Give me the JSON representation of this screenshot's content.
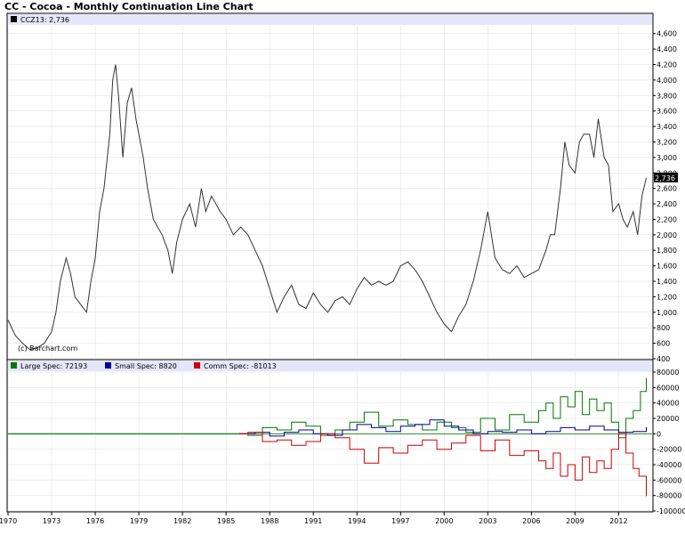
{
  "title": "CC - Cocoa - Monthly Continuation Line Chart",
  "colors": {
    "panel_border": "#000000",
    "header_band": "#e6e6fa",
    "price_line": "#333333",
    "grid": "#dcdcdc",
    "large_spec": "#007700",
    "small_spec": "#000099",
    "comm_spec": "#cc0000",
    "zero_line": "#2a8a2a",
    "last_bg": "#000000",
    "last_fg": "#ffffff"
  },
  "chart_data": [
    {
      "type": "line",
      "name": "price",
      "legend": "CCZ13: 2,736",
      "series_name": "CCZ13",
      "last_value_label": "2,736",
      "credit": "(c) Barchart.com",
      "ylim": [
        400,
        4700
      ],
      "yticks": [
        400,
        600,
        800,
        1000,
        1200,
        1400,
        1600,
        1800,
        2000,
        2200,
        2400,
        2600,
        2800,
        3000,
        3200,
        3400,
        3600,
        3800,
        4000,
        4200,
        4400,
        4600
      ],
      "ytick_labels": [
        "400",
        "600",
        "800",
        "1,000",
        "1,200",
        "1,400",
        "1,600",
        "1,800",
        "2,000",
        "2,200",
        "2,400",
        "2,600",
        "2,800",
        "3,000",
        "3,200",
        "3,400",
        "3,600",
        "3,800",
        "4,000",
        "4,200",
        "4,400",
        "4,600"
      ],
      "x": [
        1970.0,
        1970.5,
        1971.0,
        1971.5,
        1972.0,
        1972.5,
        1973.0,
        1973.3,
        1973.6,
        1974.0,
        1974.3,
        1974.6,
        1975.0,
        1975.4,
        1975.7,
        1976.0,
        1976.3,
        1976.6,
        1977.0,
        1977.2,
        1977.4,
        1977.6,
        1977.9,
        1978.2,
        1978.5,
        1978.8,
        1979.0,
        1979.3,
        1979.6,
        1980.0,
        1980.3,
        1980.6,
        1981.0,
        1981.3,
        1981.6,
        1982.0,
        1982.5,
        1982.9,
        1983.3,
        1983.6,
        1984.0,
        1984.3,
        1984.6,
        1985.0,
        1985.5,
        1986.0,
        1986.5,
        1987.0,
        1987.5,
        1988.0,
        1988.5,
        1989.0,
        1989.5,
        1990.0,
        1990.5,
        1991.0,
        1991.5,
        1992.0,
        1992.5,
        1993.0,
        1993.5,
        1994.0,
        1994.5,
        1995.0,
        1995.5,
        1996.0,
        1996.5,
        1997.0,
        1997.5,
        1998.0,
        1998.5,
        1999.0,
        1999.5,
        2000.0,
        2000.5,
        2001.0,
        2001.5,
        2002.0,
        2002.5,
        2003.0,
        2003.5,
        2004.0,
        2004.5,
        2005.0,
        2005.5,
        2006.0,
        2006.5,
        2007.0,
        2007.3,
        2007.6,
        2008.0,
        2008.3,
        2008.6,
        2009.0,
        2009.3,
        2009.6,
        2010.0,
        2010.3,
        2010.6,
        2011.0,
        2011.3,
        2011.6,
        2012.0,
        2012.3,
        2012.6,
        2013.0,
        2013.3,
        2013.6,
        2013.9
      ],
      "values": [
        900,
        700,
        600,
        520,
        540,
        600,
        750,
        1000,
        1400,
        1700,
        1500,
        1200,
        1100,
        1000,
        1400,
        1700,
        2300,
        2600,
        3300,
        4000,
        4200,
        3800,
        3000,
        3700,
        3900,
        3500,
        3300,
        3000,
        2600,
        2200,
        2100,
        2000,
        1800,
        1500,
        1900,
        2200,
        2400,
        2100,
        2600,
        2300,
        2500,
        2400,
        2300,
        2200,
        2000,
        2100,
        2000,
        1800,
        1600,
        1300,
        1000,
        1200,
        1350,
        1100,
        1050,
        1250,
        1100,
        1000,
        1150,
        1200,
        1100,
        1300,
        1450,
        1350,
        1400,
        1350,
        1400,
        1600,
        1650,
        1550,
        1400,
        1200,
        1000,
        850,
        750,
        950,
        1100,
        1400,
        1800,
        2300,
        1700,
        1550,
        1500,
        1600,
        1450,
        1500,
        1550,
        1800,
        2000,
        2000,
        2600,
        3200,
        2900,
        2800,
        3200,
        3300,
        3300,
        3000,
        3500,
        3000,
        2900,
        2300,
        2400,
        2200,
        2100,
        2300,
        2000,
        2500,
        2736
      ]
    },
    {
      "type": "line",
      "name": "cot",
      "ylim": [
        -100000,
        80000
      ],
      "yticks": [
        -100000,
        -80000,
        -60000,
        -40000,
        -20000,
        0,
        20000,
        40000,
        60000,
        80000
      ],
      "ytick_labels": [
        "-100000",
        "-80000",
        "-60000",
        "-40000",
        "-20000",
        "0",
        "20000",
        "40000",
        "60000",
        "80000"
      ],
      "series": [
        {
          "name": "Large Spec",
          "legend": "Large Spec: 72193",
          "color_key": "large_spec",
          "x": [
            1970.0,
            1985.9,
            1986.5,
            1987.5,
            1988.5,
            1989.5,
            1990.5,
            1991.5,
            1992.5,
            1993.5,
            1994.5,
            1995.5,
            1996.5,
            1997.5,
            1998.5,
            1999.5,
            2000.5,
            2001.5,
            2002.5,
            2003.5,
            2004.5,
            2005.5,
            2006.5,
            2007.0,
            2007.5,
            2008.0,
            2008.5,
            2009.0,
            2009.5,
            2010.0,
            2010.5,
            2011.0,
            2011.5,
            2012.0,
            2012.5,
            2013.0,
            2013.5,
            2013.9
          ],
          "values": [
            0,
            0,
            -2000,
            8000,
            5000,
            15000,
            10000,
            -2000,
            5000,
            15000,
            28000,
            10000,
            18000,
            12000,
            5000,
            15000,
            8000,
            2000,
            20000,
            5000,
            25000,
            15000,
            30000,
            40000,
            20000,
            48000,
            35000,
            55000,
            25000,
            45000,
            30000,
            40000,
            15000,
            -5000,
            20000,
            30000,
            55000,
            72193
          ]
        },
        {
          "name": "Small Spec",
          "legend": "Small Spec: 8820",
          "color_key": "small_spec",
          "x": [
            1985.9,
            1987.0,
            1988.0,
            1989.0,
            1990.0,
            1991.0,
            1992.0,
            1993.0,
            1994.0,
            1995.0,
            1996.0,
            1997.0,
            1998.0,
            1999.0,
            2000.0,
            2001.0,
            2002.0,
            2003.0,
            2004.0,
            2005.0,
            2006.0,
            2007.0,
            2008.0,
            2009.0,
            2010.0,
            2011.0,
            2012.0,
            2013.0,
            2013.9
          ],
          "values": [
            0,
            2000,
            -3000,
            2000,
            5000,
            0,
            -2000,
            5000,
            12000,
            8000,
            3000,
            10000,
            12000,
            18000,
            10000,
            5000,
            0,
            3000,
            2000,
            5000,
            0,
            3000,
            8000,
            5000,
            10000,
            5000,
            2000,
            3000,
            8820
          ]
        },
        {
          "name": "Comm Spec",
          "legend": "Comm Spec: -81013",
          "color_key": "comm_spec",
          "x": [
            1985.9,
            1986.5,
            1987.5,
            1988.5,
            1989.5,
            1990.5,
            1991.5,
            1992.5,
            1993.5,
            1994.5,
            1995.5,
            1996.5,
            1997.5,
            1998.5,
            1999.5,
            2000.5,
            2001.5,
            2002.5,
            2003.5,
            2004.5,
            2005.5,
            2006.5,
            2007.0,
            2007.5,
            2008.0,
            2008.5,
            2009.0,
            2009.5,
            2010.0,
            2010.5,
            2011.0,
            2011.5,
            2012.0,
            2012.5,
            2013.0,
            2013.4,
            2013.9
          ],
          "values": [
            0,
            2000,
            -10000,
            -8000,
            -15000,
            -10000,
            0,
            -5000,
            -20000,
            -38000,
            -18000,
            -25000,
            -15000,
            -8000,
            -20000,
            -12000,
            -2000,
            -22000,
            -8000,
            -28000,
            -22000,
            -35000,
            -45000,
            -25000,
            -55000,
            -40000,
            -60000,
            -30000,
            -50000,
            -35000,
            -45000,
            -20000,
            0,
            -25000,
            -45000,
            -55000,
            -81013
          ]
        }
      ]
    }
  ],
  "x_axis": {
    "xlim": [
      1970,
      2014.3
    ],
    "ticks": [
      1970,
      1973,
      1976,
      1979,
      1982,
      1985,
      1988,
      1991,
      1994,
      1997,
      2000,
      2003,
      2006,
      2009,
      2012
    ],
    "tick_labels": [
      "1970",
      "1973",
      "1976",
      "1979",
      "1982",
      "1985",
      "1988",
      "1991",
      "1994",
      "1997",
      "2000",
      "2003",
      "2006",
      "2009",
      "2012"
    ]
  }
}
